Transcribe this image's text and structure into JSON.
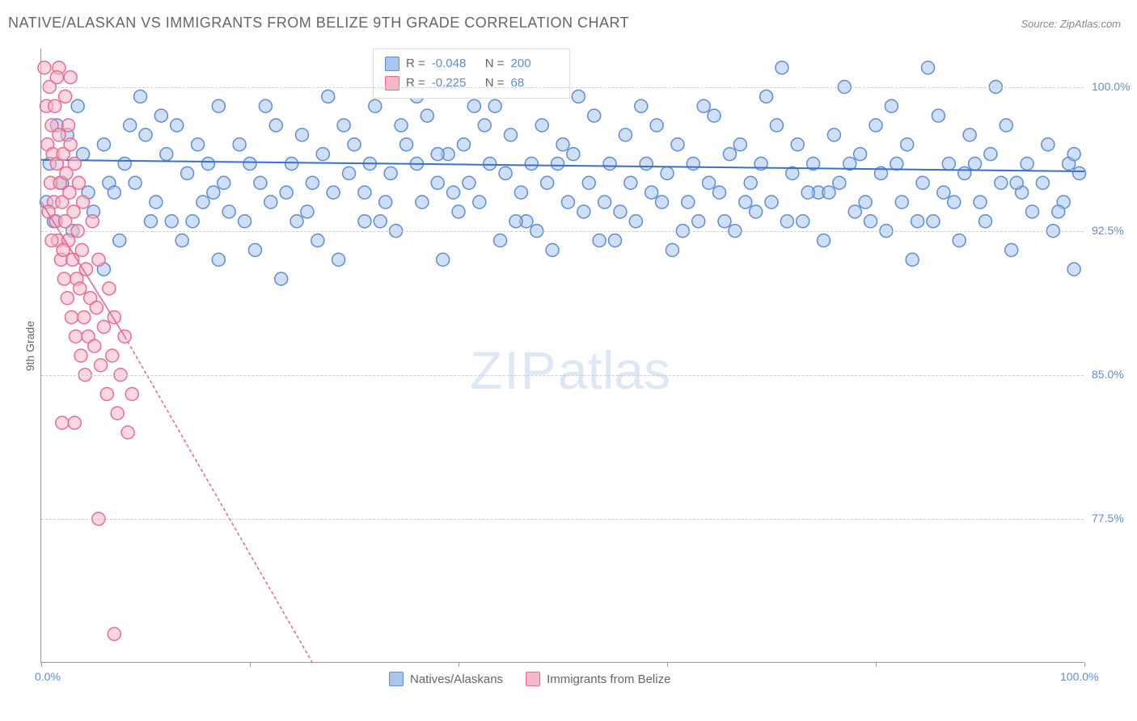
{
  "title": "NATIVE/ALASKAN VS IMMIGRANTS FROM BELIZE 9TH GRADE CORRELATION CHART",
  "source": "Source: ZipAtlas.com",
  "ylabel": "9th Grade",
  "watermark_a": "ZIP",
  "watermark_b": "atlas",
  "chart": {
    "type": "scatter",
    "background_color": "#ffffff",
    "grid_color": "#cccccc",
    "axis_color": "#999999",
    "xlim": [
      0,
      100
    ],
    "ylim": [
      70,
      102
    ],
    "yticks": [
      {
        "v": 100.0,
        "label": "100.0%"
      },
      {
        "v": 92.5,
        "label": "92.5%"
      },
      {
        "v": 85.0,
        "label": "85.0%"
      },
      {
        "v": 77.5,
        "label": "77.5%"
      }
    ],
    "xticks": [
      0,
      20,
      40,
      60,
      80,
      100
    ],
    "xtick_labels": {
      "0": "0.0%",
      "100": "100.0%"
    },
    "marker_radius": 8,
    "marker_stroke_width": 1.5,
    "series": [
      {
        "name": "Natives/Alaskans",
        "fill": "#a8c5ec",
        "stroke": "#5b8dd6",
        "fill_opacity": 0.55,
        "R": "-0.048",
        "N": "200",
        "trend": {
          "x1": 0,
          "y1": 96.2,
          "x2": 100,
          "y2": 95.6,
          "stroke": "#3b6fc9",
          "width": 2,
          "dash": "none"
        },
        "points": [
          [
            0.5,
            94
          ],
          [
            0.8,
            96
          ],
          [
            1.2,
            93
          ],
          [
            2,
            95
          ],
          [
            3,
            92.5
          ],
          [
            4,
            96.5
          ],
          [
            5,
            93.5
          ],
          [
            6,
            97
          ],
          [
            6.5,
            95
          ],
          [
            7,
            94.5
          ],
          [
            8,
            96
          ],
          [
            8.5,
            98
          ],
          [
            9,
            95
          ],
          [
            10,
            97.5
          ],
          [
            11,
            94
          ],
          [
            12,
            96.5
          ],
          [
            12.5,
            93
          ],
          [
            13,
            98
          ],
          [
            14,
            95.5
          ],
          [
            15,
            97
          ],
          [
            15.5,
            94
          ],
          [
            16,
            96
          ],
          [
            17,
            99
          ],
          [
            17.5,
            95
          ],
          [
            18,
            93.5
          ],
          [
            19,
            97
          ],
          [
            20,
            96
          ],
          [
            20.5,
            91.5
          ],
          [
            21,
            95
          ],
          [
            22,
            94
          ],
          [
            22.5,
            98
          ],
          [
            23,
            90
          ],
          [
            24,
            96
          ],
          [
            24.5,
            93
          ],
          [
            25,
            97.5
          ],
          [
            26,
            95
          ],
          [
            26.5,
            92
          ],
          [
            27,
            96.5
          ],
          [
            28,
            94.5
          ],
          [
            29,
            98
          ],
          [
            29.5,
            95.5
          ],
          [
            30,
            97
          ],
          [
            31,
            93
          ],
          [
            31.5,
            96
          ],
          [
            32,
            99
          ],
          [
            33,
            94
          ],
          [
            33.5,
            95.5
          ],
          [
            34,
            92.5
          ],
          [
            35,
            97
          ],
          [
            36,
            96
          ],
          [
            36.5,
            94
          ],
          [
            37,
            98.5
          ],
          [
            38,
            95
          ],
          [
            38.5,
            91
          ],
          [
            39,
            96.5
          ],
          [
            40,
            93.5
          ],
          [
            40.5,
            97
          ],
          [
            41,
            95
          ],
          [
            42,
            94
          ],
          [
            42.5,
            98
          ],
          [
            43,
            96
          ],
          [
            44,
            92
          ],
          [
            44.5,
            95.5
          ],
          [
            45,
            97.5
          ],
          [
            46,
            94.5
          ],
          [
            46.5,
            93
          ],
          [
            47,
            96
          ],
          [
            48,
            98
          ],
          [
            48.5,
            95
          ],
          [
            49,
            91.5
          ],
          [
            50,
            97
          ],
          [
            50.5,
            94
          ],
          [
            51,
            96.5
          ],
          [
            52,
            93.5
          ],
          [
            52.5,
            95
          ],
          [
            53,
            98.5
          ],
          [
            54,
            94
          ],
          [
            54.5,
            96
          ],
          [
            55,
            92
          ],
          [
            56,
            97.5
          ],
          [
            56.5,
            95
          ],
          [
            57,
            93
          ],
          [
            58,
            96
          ],
          [
            58.5,
            94.5
          ],
          [
            59,
            98
          ],
          [
            60,
            95.5
          ],
          [
            60.5,
            91.5
          ],
          [
            61,
            97
          ],
          [
            62,
            94
          ],
          [
            62.5,
            96
          ],
          [
            63,
            93
          ],
          [
            64,
            95
          ],
          [
            64.5,
            98.5
          ],
          [
            65,
            94.5
          ],
          [
            66,
            96.5
          ],
          [
            66.5,
            92.5
          ],
          [
            67,
            97
          ],
          [
            68,
            95
          ],
          [
            68.5,
            93.5
          ],
          [
            69,
            96
          ],
          [
            70,
            94
          ],
          [
            70.5,
            98
          ],
          [
            71,
            101
          ],
          [
            72,
            95.5
          ],
          [
            72.5,
            97
          ],
          [
            73,
            93
          ],
          [
            74,
            96
          ],
          [
            74.5,
            94.5
          ],
          [
            75,
            92
          ],
          [
            76,
            97.5
          ],
          [
            76.5,
            95
          ],
          [
            77,
            100
          ],
          [
            78,
            93.5
          ],
          [
            78.5,
            96.5
          ],
          [
            79,
            94
          ],
          [
            80,
            98
          ],
          [
            80.5,
            95.5
          ],
          [
            81,
            92.5
          ],
          [
            82,
            96
          ],
          [
            82.5,
            94
          ],
          [
            83,
            97
          ],
          [
            84,
            93
          ],
          [
            84.5,
            95
          ],
          [
            85,
            101
          ],
          [
            86,
            98.5
          ],
          [
            86.5,
            94.5
          ],
          [
            87,
            96
          ],
          [
            88,
            92
          ],
          [
            88.5,
            95.5
          ],
          [
            89,
            97.5
          ],
          [
            90,
            94
          ],
          [
            90.5,
            93
          ],
          [
            91,
            96.5
          ],
          [
            92,
            95
          ],
          [
            92.5,
            98
          ],
          [
            93,
            91.5
          ],
          [
            94,
            94.5
          ],
          [
            94.5,
            96
          ],
          [
            95,
            93.5
          ],
          [
            96,
            95
          ],
          [
            96.5,
            97
          ],
          [
            97,
            92.5
          ],
          [
            98,
            94
          ],
          [
            98.5,
            96
          ],
          [
            99,
            90.5
          ],
          [
            99.5,
            95.5
          ],
          [
            3.5,
            99
          ],
          [
            7.5,
            92
          ],
          [
            11.5,
            98.5
          ],
          [
            14.5,
            93
          ],
          [
            17,
            91
          ],
          [
            21.5,
            99
          ],
          [
            25.5,
            93.5
          ],
          [
            28.5,
            91
          ],
          [
            32.5,
            93
          ],
          [
            36,
            99.5
          ],
          [
            39.5,
            94.5
          ],
          [
            43.5,
            99
          ],
          [
            47.5,
            92.5
          ],
          [
            51.5,
            99.5
          ],
          [
            55.5,
            93.5
          ],
          [
            59.5,
            94
          ],
          [
            63.5,
            99
          ],
          [
            67.5,
            94
          ],
          [
            71.5,
            93
          ],
          [
            75.5,
            94.5
          ],
          [
            79.5,
            93
          ],
          [
            83.5,
            91
          ],
          [
            87.5,
            94
          ],
          [
            91.5,
            100
          ],
          [
            2.5,
            97.5
          ],
          [
            6,
            90.5
          ],
          [
            9.5,
            99.5
          ],
          [
            13.5,
            92
          ],
          [
            16.5,
            94.5
          ],
          [
            19.5,
            93
          ],
          [
            23.5,
            94.5
          ],
          [
            27.5,
            99.5
          ],
          [
            31,
            94.5
          ],
          [
            34.5,
            98
          ],
          [
            38,
            96.5
          ],
          [
            41.5,
            99
          ],
          [
            45.5,
            93
          ],
          [
            49.5,
            96
          ],
          [
            53.5,
            92
          ],
          [
            57.5,
            99
          ],
          [
            61.5,
            92.5
          ],
          [
            65.5,
            93
          ],
          [
            69.5,
            99.5
          ],
          [
            73.5,
            94.5
          ],
          [
            77.5,
            96
          ],
          [
            81.5,
            99
          ],
          [
            85.5,
            93
          ],
          [
            89.5,
            96
          ],
          [
            93.5,
            95
          ],
          [
            97.5,
            93.5
          ],
          [
            99,
            96.5
          ],
          [
            1.5,
            98
          ],
          [
            4.5,
            94.5
          ],
          [
            10.5,
            93
          ]
        ]
      },
      {
        "name": "Immigrants from Belize",
        "fill": "#f6b7c9",
        "stroke": "#e86b8f",
        "fill_opacity": 0.55,
        "R": "-0.225",
        "N": "68",
        "trend": {
          "x1": 0,
          "y1": 94.0,
          "x2": 26,
          "y2": 70.0,
          "stroke": "#e86b8f",
          "width": 1.6,
          "dash": "4,3",
          "solid_x2": 8,
          "solid_y2": 87
        },
        "points": [
          [
            0.3,
            101
          ],
          [
            0.5,
            99
          ],
          [
            0.6,
            97
          ],
          [
            0.8,
            100
          ],
          [
            0.9,
            95
          ],
          [
            1.0,
            98
          ],
          [
            1.1,
            96.5
          ],
          [
            1.2,
            94
          ],
          [
            1.3,
            99
          ],
          [
            1.4,
            93
          ],
          [
            1.5,
            96
          ],
          [
            1.6,
            92
          ],
          [
            1.7,
            97.5
          ],
          [
            1.8,
            95
          ],
          [
            1.9,
            91
          ],
          [
            2.0,
            94
          ],
          [
            2.1,
            96.5
          ],
          [
            2.2,
            90
          ],
          [
            2.3,
            93
          ],
          [
            2.4,
            95.5
          ],
          [
            2.5,
            89
          ],
          [
            2.6,
            92
          ],
          [
            2.7,
            94.5
          ],
          [
            2.8,
            97
          ],
          [
            2.9,
            88
          ],
          [
            3.0,
            91
          ],
          [
            3.1,
            93.5
          ],
          [
            3.2,
            96
          ],
          [
            3.3,
            87
          ],
          [
            3.4,
            90
          ],
          [
            3.5,
            92.5
          ],
          [
            3.6,
            95
          ],
          [
            3.7,
            89.5
          ],
          [
            3.8,
            86
          ],
          [
            3.9,
            91.5
          ],
          [
            4.0,
            94
          ],
          [
            4.1,
            88
          ],
          [
            4.2,
            85
          ],
          [
            4.3,
            90.5
          ],
          [
            4.5,
            87
          ],
          [
            4.7,
            89
          ],
          [
            4.9,
            93
          ],
          [
            5.1,
            86.5
          ],
          [
            5.3,
            88.5
          ],
          [
            5.5,
            91
          ],
          [
            5.7,
            85.5
          ],
          [
            6.0,
            87.5
          ],
          [
            6.3,
            84
          ],
          [
            6.5,
            89.5
          ],
          [
            6.8,
            86
          ],
          [
            7.0,
            88
          ],
          [
            7.3,
            83
          ],
          [
            7.6,
            85
          ],
          [
            8.0,
            87
          ],
          [
            8.3,
            82
          ],
          [
            8.7,
            84
          ],
          [
            2.0,
            82.5
          ],
          [
            3.2,
            82.5
          ],
          [
            2.3,
            99.5
          ],
          [
            2.8,
            100.5
          ],
          [
            1.7,
            101
          ],
          [
            1.0,
            92
          ],
          [
            5.5,
            77.5
          ],
          [
            7.0,
            71.5
          ],
          [
            0.7,
            93.5
          ],
          [
            1.5,
            100.5
          ],
          [
            2.1,
            91.5
          ],
          [
            2.6,
            98
          ]
        ]
      }
    ],
    "bottom_legend": [
      {
        "label": "Natives/Alaskans",
        "fill": "#a8c5ec",
        "stroke": "#5b8dd6"
      },
      {
        "label": "Immigrants from Belize",
        "fill": "#f6b7c9",
        "stroke": "#e86b8f"
      }
    ]
  }
}
